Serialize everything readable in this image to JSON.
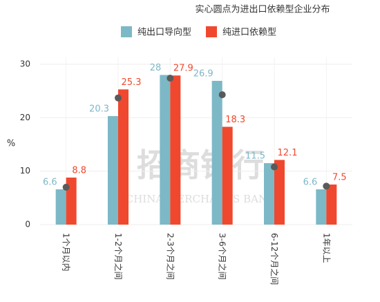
{
  "chart_data": {
    "type": "bar",
    "title": "实心圆点为进出口依赖型企业分布",
    "y_label": "%",
    "watermark": [
      "招商银行",
      "CHINA MERCHANTS BANK"
    ],
    "categories": [
      "1个月以内",
      "1-2个月之间",
      "2-3个月之间",
      "3-6个月之间",
      "6-12个月之间",
      "1年以上"
    ],
    "series": [
      {
        "name": "纯出口导向型",
        "color": "#7db8c6",
        "values": [
          6.6,
          20.3,
          28,
          26.9,
          11.5,
          6.6
        ]
      },
      {
        "name": "纯进口依赖型",
        "color": "#f0482e",
        "values": [
          8.8,
          25.3,
          27.9,
          18.3,
          12.1,
          7.5
        ]
      },
      {
        "color": "#5a5a5a",
        "marker": "dot",
        "values": [
          7,
          23.7,
          27.4,
          24.3,
          10.8,
          7.2
        ]
      }
    ],
    "ylim": [
      0,
      30
    ],
    "yticks": [
      0,
      10,
      20,
      30
    ],
    "grid": true
  }
}
